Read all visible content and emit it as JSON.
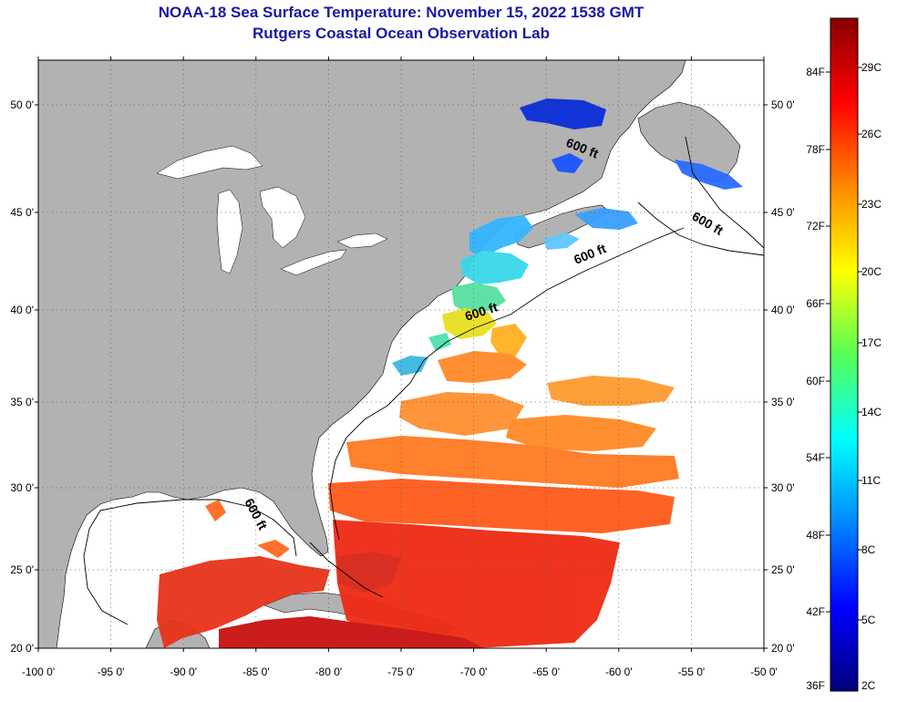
{
  "header": {
    "title": "NOAA-18 Sea Surface Temperature:  November 15, 2022 1538 GMT",
    "subtitle": "Rutgers Coastal Ocean Observation Lab"
  },
  "map": {
    "lat_labels": [
      "50 0'",
      "45 0'",
      "40 0'",
      "35 0'",
      "30 0'",
      "25 0'",
      "20 0'"
    ],
    "lon_labels": [
      "-100 0'",
      "-95 0'",
      "-90 0'",
      "-85 0'",
      "-80 0'",
      "-75 0'",
      "-70 0'",
      "-65 0'",
      "-60 0'",
      "-55 0'",
      "-50 0'"
    ],
    "contour_label": "600 ft",
    "colors": {
      "land": "#b2b2b2",
      "ocean": "#ffffff"
    }
  },
  "colorbar": {
    "fahrenheit": [
      "84F",
      "78F",
      "72F",
      "66F",
      "60F",
      "54F",
      "48F",
      "42F",
      "36F"
    ],
    "celsius": [
      "29C",
      "26C",
      "23C",
      "20C",
      "17C",
      "14C",
      "11C",
      "8C",
      "5C",
      "2C"
    ],
    "stops": [
      "#00007a",
      "#0000ff",
      "#0088ff",
      "#00ffff",
      "#55ff55",
      "#ffff00",
      "#ff8800",
      "#ff0000",
      "#880000"
    ]
  }
}
